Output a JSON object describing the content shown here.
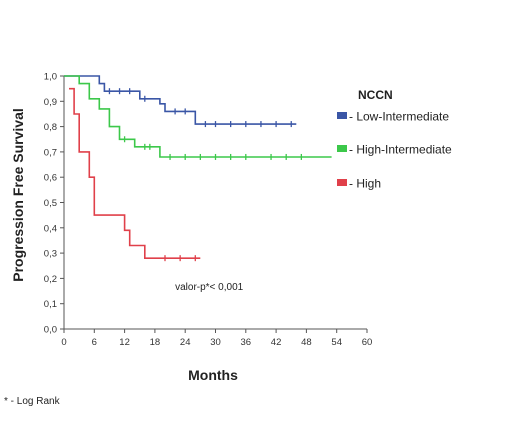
{
  "chart_data": {
    "type": "line",
    "xlabel": "Months",
    "ylabel": "Progression Free Survival",
    "xlim": [
      0,
      60
    ],
    "ylim": [
      0,
      1.0
    ],
    "x_ticks": [
      "0",
      "6",
      "12",
      "18",
      "24",
      "30",
      "36",
      "42",
      "48",
      "54",
      "60"
    ],
    "y_ticks": [
      "0,0",
      "0,1",
      "0,2",
      "0,3",
      "0,4",
      "0,5",
      "0,6",
      "0,7",
      "0,8",
      "0,9",
      "1,0"
    ],
    "legend_title": "NCCN",
    "legend_position": "right",
    "grid": false,
    "series": [
      {
        "name": "- Low-Intermediate",
        "color": "#3a56a6",
        "points": [
          [
            0,
            1.0
          ],
          [
            7,
            1.0
          ],
          [
            7,
            0.97
          ],
          [
            8,
            0.97
          ],
          [
            8,
            0.94
          ],
          [
            15,
            0.94
          ],
          [
            15,
            0.91
          ],
          [
            19,
            0.91
          ],
          [
            19,
            0.89
          ],
          [
            20,
            0.89
          ],
          [
            20,
            0.86
          ],
          [
            26,
            0.86
          ],
          [
            26,
            0.81
          ],
          [
            46,
            0.81
          ]
        ],
        "censored": [
          [
            9,
            0.94
          ],
          [
            11,
            0.94
          ],
          [
            13,
            0.94
          ],
          [
            16,
            0.91
          ],
          [
            22,
            0.86
          ],
          [
            24,
            0.86
          ],
          [
            28,
            0.81
          ],
          [
            30,
            0.81
          ],
          [
            33,
            0.81
          ],
          [
            36,
            0.81
          ],
          [
            39,
            0.81
          ],
          [
            42,
            0.81
          ],
          [
            45,
            0.81
          ]
        ]
      },
      {
        "name": "- High-Intermediate",
        "color": "#3cc84a",
        "points": [
          [
            0,
            1.0
          ],
          [
            3,
            1.0
          ],
          [
            3,
            0.97
          ],
          [
            5,
            0.97
          ],
          [
            5,
            0.91
          ],
          [
            7,
            0.91
          ],
          [
            7,
            0.87
          ],
          [
            9,
            0.87
          ],
          [
            9,
            0.8
          ],
          [
            11,
            0.8
          ],
          [
            11,
            0.75
          ],
          [
            14,
            0.75
          ],
          [
            14,
            0.72
          ],
          [
            19,
            0.72
          ],
          [
            19,
            0.68
          ],
          [
            53,
            0.68
          ]
        ],
        "censored": [
          [
            12,
            0.75
          ],
          [
            16,
            0.72
          ],
          [
            17,
            0.72
          ],
          [
            21,
            0.68
          ],
          [
            24,
            0.68
          ],
          [
            27,
            0.68
          ],
          [
            30,
            0.68
          ],
          [
            33,
            0.68
          ],
          [
            36,
            0.68
          ],
          [
            41,
            0.68
          ],
          [
            44,
            0.68
          ],
          [
            47,
            0.68
          ]
        ]
      },
      {
        "name": "- High",
        "color": "#e0404a",
        "points": [
          [
            1,
            0.95
          ],
          [
            2,
            0.95
          ],
          [
            2,
            0.85
          ],
          [
            3,
            0.85
          ],
          [
            3,
            0.7
          ],
          [
            5,
            0.7
          ],
          [
            5,
            0.6
          ],
          [
            6,
            0.6
          ],
          [
            6,
            0.45
          ],
          [
            12,
            0.45
          ],
          [
            12,
            0.39
          ],
          [
            13,
            0.39
          ],
          [
            13,
            0.33
          ],
          [
            16,
            0.33
          ],
          [
            16,
            0.28
          ],
          [
            27,
            0.28
          ]
        ],
        "censored": [
          [
            20,
            0.28
          ],
          [
            23,
            0.28
          ],
          [
            26,
            0.28
          ]
        ]
      }
    ],
    "annotation": "valor-p*< 0,001",
    "annotation_position": [
      22,
      0.155
    ],
    "footnote": "* - Log Rank"
  }
}
